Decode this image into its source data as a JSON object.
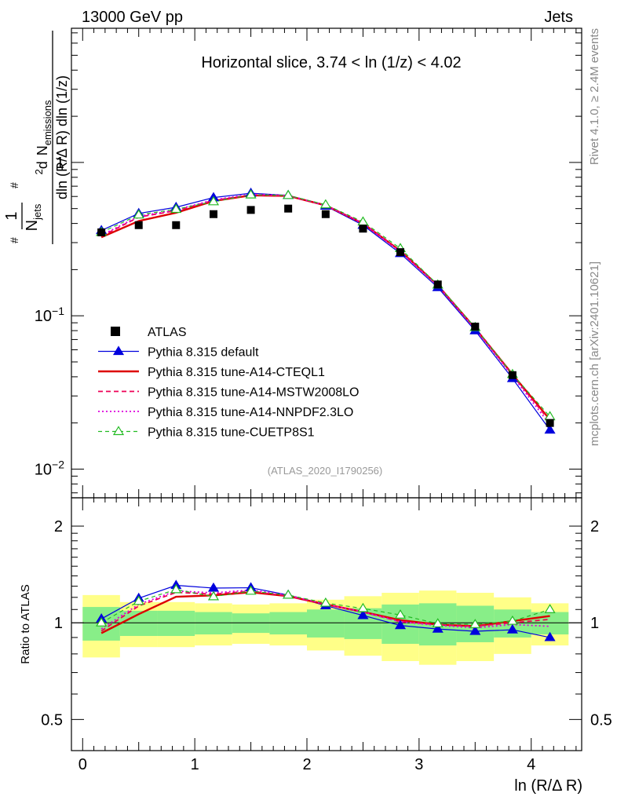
{
  "header": {
    "energy_label": "13000 GeV pp",
    "category_label": "Jets",
    "rivet_label": "Rivet 4.1.0, ≥ 2.4M events",
    "mcplots_label": "mcplots.cern.ch [arXiv:2401.10621]",
    "analysis_id": "(ATLAS_2020_I1790256)"
  },
  "chart_data": {
    "type": "line",
    "title": "Horizontal slice, 3.74 < ln (1/z) < 4.02",
    "xlabel": "ln (R/Δ R)",
    "ylabel_main": "1/N_jets dN_emissions / dln(R/ΔR) dln(1/z)",
    "ylabel_ratio": "Ratio to ATLAS",
    "xlim": [
      -0.1,
      4.45
    ],
    "ylim_main": [
      0.0065,
      7.5
    ],
    "ylim_ratio": [
      0.4,
      2.45
    ],
    "ylog": true,
    "x_ticks": [
      "0",
      "1",
      "2",
      "3",
      "4"
    ],
    "y_ticks_main": [
      "10^-2",
      "10^-1",
      "1"
    ],
    "y_ticks_ratio": [
      "0.5",
      "1",
      "2"
    ],
    "x": [
      0.167,
      0.5,
      0.833,
      1.167,
      1.5,
      1.833,
      2.167,
      2.5,
      2.833,
      3.167,
      3.5,
      3.833,
      4.167
    ],
    "x_edges": [
      0,
      0.333,
      0.667,
      1.0,
      1.333,
      1.667,
      2.0,
      2.333,
      2.667,
      3.0,
      3.333,
      3.667,
      4.0,
      4.333
    ],
    "data": {
      "name": "ATLAS",
      "values": [
        0.35,
        0.39,
        0.39,
        0.46,
        0.49,
        0.5,
        0.46,
        0.37,
        0.26,
        0.16,
        0.085,
        0.041,
        0.02
      ]
    },
    "band_inner": [
      0.12,
      0.09,
      0.09,
      0.08,
      0.07,
      0.08,
      0.1,
      0.11,
      0.14,
      0.15,
      0.13,
      0.1,
      0.08
    ],
    "band_outer": [
      0.22,
      0.16,
      0.16,
      0.15,
      0.14,
      0.15,
      0.18,
      0.21,
      0.24,
      0.26,
      0.24,
      0.2,
      0.15
    ],
    "series": [
      {
        "name": "Pythia 8.315 default",
        "color": "#0000dd",
        "style": "solid-triangle",
        "values": [
          0.36,
          0.465,
          0.51,
          0.59,
          0.63,
          0.61,
          0.52,
          0.39,
          0.255,
          0.153,
          0.08,
          0.039,
          0.018
        ]
      },
      {
        "name": "Pythia 8.315 tune-A14-CTEQL1",
        "color": "#dd0000",
        "style": "solid-thick",
        "values": [
          0.325,
          0.415,
          0.47,
          0.56,
          0.61,
          0.605,
          0.525,
          0.4,
          0.265,
          0.158,
          0.083,
          0.0415,
          0.021
        ]
      },
      {
        "name": "Pythia 8.315 tune-A14-MSTW2008LO",
        "color": "#ee0055",
        "style": "dashed",
        "values": [
          0.33,
          0.44,
          0.485,
          0.565,
          0.615,
          0.605,
          0.525,
          0.4,
          0.262,
          0.158,
          0.083,
          0.041,
          0.0205
        ]
      },
      {
        "name": "Pythia 8.315 tune-A14-NNPDF2.3LO",
        "color": "#dd00dd",
        "style": "dotted",
        "values": [
          0.335,
          0.445,
          0.49,
          0.57,
          0.62,
          0.61,
          0.525,
          0.4,
          0.262,
          0.157,
          0.082,
          0.0405,
          0.0195
        ]
      },
      {
        "name": "Pythia 8.315 tune-CUETP8S1",
        "color": "#22bb22",
        "style": "dashed-open-triangle",
        "values": [
          0.35,
          0.455,
          0.495,
          0.555,
          0.615,
          0.61,
          0.53,
          0.41,
          0.275,
          0.159,
          0.084,
          0.0415,
          0.022
        ]
      }
    ]
  }
}
